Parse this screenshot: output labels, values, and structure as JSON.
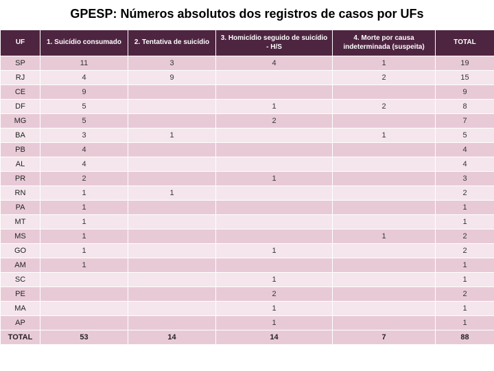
{
  "title": "GPESP: Números absolutos dos registros de casos por UFs",
  "headers": {
    "uf": "UF",
    "c1": "1. Suicídio consumado",
    "c2": "2. Tentativa de suicídio",
    "c3": "3. Homicídio seguido de suicídio - H/S",
    "c4": "4. Morte por causa indeterminada (suspeita)",
    "total": "TOTAL"
  },
  "rows": [
    {
      "uf": "SP",
      "c1": "11",
      "c2": "3",
      "c3": "4",
      "c4": "1",
      "total": "19"
    },
    {
      "uf": "RJ",
      "c1": "4",
      "c2": "9",
      "c3": "",
      "c4": "2",
      "total": "15"
    },
    {
      "uf": "CE",
      "c1": "9",
      "c2": "",
      "c3": "",
      "c4": "",
      "total": "9"
    },
    {
      "uf": "DF",
      "c1": "5",
      "c2": "",
      "c3": "1",
      "c4": "2",
      "total": "8"
    },
    {
      "uf": "MG",
      "c1": "5",
      "c2": "",
      "c3": "2",
      "c4": "",
      "total": "7"
    },
    {
      "uf": "BA",
      "c1": "3",
      "c2": "1",
      "c3": "",
      "c4": "1",
      "total": "5"
    },
    {
      "uf": "PB",
      "c1": "4",
      "c2": "",
      "c3": "",
      "c4": "",
      "total": "4"
    },
    {
      "uf": "AL",
      "c1": "4",
      "c2": "",
      "c3": "",
      "c4": "",
      "total": "4"
    },
    {
      "uf": "PR",
      "c1": "2",
      "c2": "",
      "c3": "1",
      "c4": "",
      "total": "3"
    },
    {
      "uf": "RN",
      "c1": "1",
      "c2": "1",
      "c3": "",
      "c4": "",
      "total": "2"
    },
    {
      "uf": "PA",
      "c1": "1",
      "c2": "",
      "c3": "",
      "c4": "",
      "total": "1"
    },
    {
      "uf": "MT",
      "c1": "1",
      "c2": "",
      "c3": "",
      "c4": "",
      "total": "1"
    },
    {
      "uf": "MS",
      "c1": "1",
      "c2": "",
      "c3": "",
      "c4": "1",
      "total": "2"
    },
    {
      "uf": "GO",
      "c1": "1",
      "c2": "",
      "c3": "1",
      "c4": "",
      "total": "2"
    },
    {
      "uf": "AM",
      "c1": "1",
      "c2": "",
      "c3": "",
      "c4": "",
      "total": "1"
    },
    {
      "uf": "SC",
      "c1": "",
      "c2": "",
      "c3": "1",
      "c4": "",
      "total": "1"
    },
    {
      "uf": "PE",
      "c1": "",
      "c2": "",
      "c3": "2",
      "c4": "",
      "total": "2"
    },
    {
      "uf": "MA",
      "c1": "",
      "c2": "",
      "c3": "1",
      "c4": "",
      "total": "1"
    },
    {
      "uf": "AP",
      "c1": "",
      "c2": "",
      "c3": "1",
      "c4": "",
      "total": "1"
    }
  ],
  "totals": {
    "uf": "TOTAL",
    "c1": "53",
    "c2": "14",
    "c3": "14",
    "c4": "7",
    "total": "88"
  }
}
